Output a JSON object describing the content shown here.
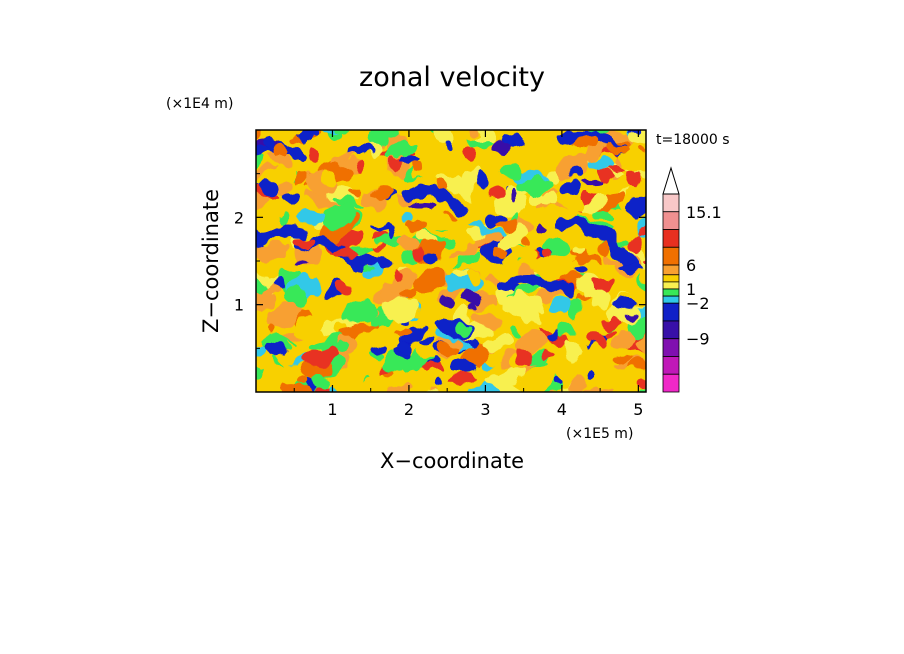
{
  "chart_data": {
    "type": "heatmap",
    "title": "zonal velocity",
    "xlabel": "X−coordinate",
    "ylabel": "Z−coordinate",
    "x_multiplier": "(×1E5 m)",
    "y_multiplier": "(×1E4 m)",
    "time_label": "t=18000 s",
    "xlim": [
      0,
      5.1
    ],
    "ylim": [
      0,
      3.0
    ],
    "x_ticks": [
      1,
      2,
      3,
      4,
      5
    ],
    "y_ticks": [
      1,
      2
    ],
    "legend": "right",
    "colorbar": {
      "labels": [
        "15.1",
        "6",
        "1",
        "−2",
        "−9"
      ],
      "top_arrow": true,
      "bins_top_to_bottom": [
        {
          "color": "#f8c8c8"
        },
        {
          "color": "#f09090"
        },
        {
          "color": "#e83020"
        },
        {
          "color": "#f07000"
        },
        {
          "color": "#f8a030"
        },
        {
          "color": "#f8d000"
        },
        {
          "color": "#f8f050"
        },
        {
          "color": "#38e858"
        },
        {
          "color": "#30c8e8"
        },
        {
          "color": "#1020c8"
        },
        {
          "color": "#3810a8"
        },
        {
          "color": "#8010b0"
        },
        {
          "color": "#c018b8"
        },
        {
          "color": "#f028c8"
        }
      ]
    }
  }
}
